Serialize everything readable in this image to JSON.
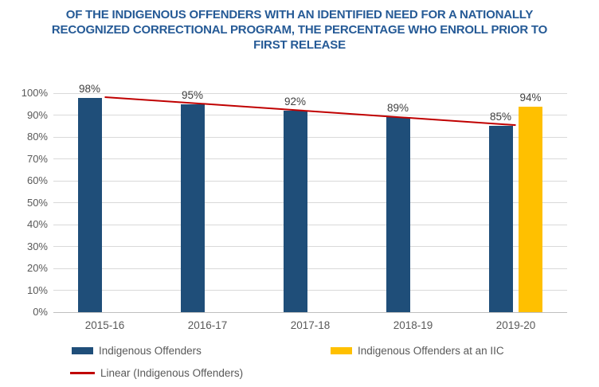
{
  "title": "OF THE INDIGENOUS OFFENDERS WITH AN IDENTIFIED NEED FOR A NATIONALLY RECOGNIZED CORRECTIONAL PROGRAM, THE PERCENTAGE WHO ENROLL PRIOR TO FIRST RELEASE",
  "colors": {
    "title_text": "#255A96",
    "bar_blue": "#1F4E79",
    "bar_yellow": "#FFC000",
    "trendline_red": "#C00000",
    "gridline": "#D9D9D9",
    "axis_line": "#BFBFBF",
    "axis_text": "#595959",
    "value_label_text": "#404040"
  },
  "chart_data": {
    "type": "bar",
    "title": "OF THE INDIGENOUS OFFENDERS WITH AN IDENTIFIED NEED FOR A NATIONALLY RECOGNIZED CORRECTIONAL PROGRAM, THE PERCENTAGE WHO ENROLL PRIOR TO FIRST RELEASE",
    "categories": [
      "2015-16",
      "2016-17",
      "2017-18",
      "2018-19",
      "2019-20"
    ],
    "series": [
      {
        "name": "Indigenous Offenders",
        "color": "#1F4E79",
        "values": [
          98,
          95,
          92,
          89,
          85
        ],
        "labels": [
          "98%",
          "95%",
          "92%",
          "89%",
          "85%"
        ]
      },
      {
        "name": "Indigenous Offenders at an IIC",
        "color": "#FFC000",
        "values": [
          null,
          null,
          null,
          null,
          94
        ],
        "labels": [
          null,
          null,
          null,
          null,
          "94%"
        ]
      }
    ],
    "trendline": {
      "name": "Linear (Indigenous Offenders)",
      "color": "#C00000",
      "start_value": 98.2,
      "end_value": 85.4
    },
    "xlabel": "",
    "ylabel": "",
    "ylim": [
      0,
      100
    ],
    "ytick_values": [
      0,
      10,
      20,
      30,
      40,
      50,
      60,
      70,
      80,
      90,
      100
    ],
    "ytick_labels": [
      "0%",
      "10%",
      "20%",
      "30%",
      "40%",
      "50%",
      "60%",
      "70%",
      "80%",
      "90%",
      "100%"
    ],
    "grid": true,
    "legend_position": "bottom"
  },
  "legend": {
    "items": [
      {
        "label": "Indigenous Offenders",
        "swatch": "blue-bar-swatch"
      },
      {
        "label": "Indigenous Offenders at an IIC",
        "swatch": "yellow-bar-swatch"
      },
      {
        "label": "Linear (Indigenous Offenders)",
        "swatch": "red-line-swatch"
      }
    ]
  }
}
